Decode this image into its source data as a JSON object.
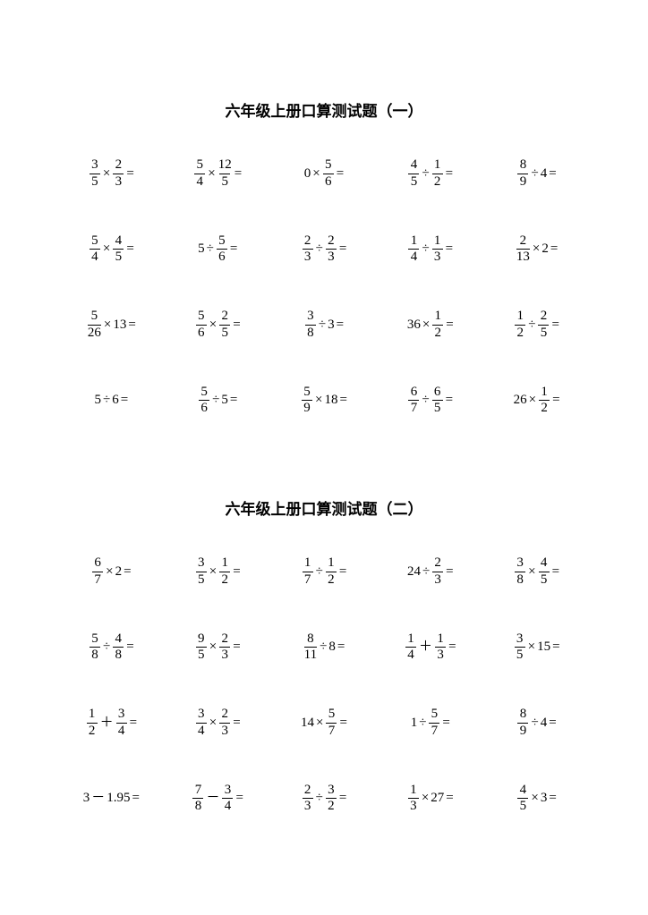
{
  "title_font_size": 17,
  "expr_font_size": 15,
  "text_color": "#000000",
  "bg_color": "#ffffff",
  "columns": 5,
  "sections": [
    {
      "title": "六年级上册口算测试题（一）",
      "rows": [
        [
          [
            {
              "t": "f",
              "n": "3",
              "d": "5"
            },
            {
              "t": "op",
              "v": "×"
            },
            {
              "t": "f",
              "n": "2",
              "d": "3"
            },
            {
              "t": "eq"
            }
          ],
          [
            {
              "t": "f",
              "n": "5",
              "d": "4"
            },
            {
              "t": "op",
              "v": "×"
            },
            {
              "t": "f",
              "n": "12",
              "d": "5"
            },
            {
              "t": "eq"
            }
          ],
          [
            {
              "t": "i",
              "v": "0"
            },
            {
              "t": "op",
              "v": "×"
            },
            {
              "t": "f",
              "n": "5",
              "d": "6"
            },
            {
              "t": "eq"
            }
          ],
          [
            {
              "t": "f",
              "n": "4",
              "d": "5"
            },
            {
              "t": "op",
              "v": "÷"
            },
            {
              "t": "f",
              "n": "1",
              "d": "2"
            },
            {
              "t": "eq"
            }
          ],
          [
            {
              "t": "f",
              "n": "8",
              "d": "9"
            },
            {
              "t": "op",
              "v": "÷"
            },
            {
              "t": "i",
              "v": "4"
            },
            {
              "t": "eq"
            }
          ]
        ],
        [
          [
            {
              "t": "f",
              "n": "5",
              "d": "4"
            },
            {
              "t": "op",
              "v": "×"
            },
            {
              "t": "f",
              "n": "4",
              "d": "5"
            },
            {
              "t": "eq"
            }
          ],
          [
            {
              "t": "i",
              "v": "5"
            },
            {
              "t": "op",
              "v": "÷"
            },
            {
              "t": "f",
              "n": "5",
              "d": "6"
            },
            {
              "t": "eq"
            }
          ],
          [
            {
              "t": "f",
              "n": "2",
              "d": "3"
            },
            {
              "t": "op",
              "v": "÷"
            },
            {
              "t": "f",
              "n": "2",
              "d": "3"
            },
            {
              "t": "eq"
            }
          ],
          [
            {
              "t": "f",
              "n": "1",
              "d": "4"
            },
            {
              "t": "op",
              "v": "÷"
            },
            {
              "t": "f",
              "n": "1",
              "d": "3"
            },
            {
              "t": "eq"
            }
          ],
          [
            {
              "t": "f",
              "n": "2",
              "d": "13"
            },
            {
              "t": "op",
              "v": "×"
            },
            {
              "t": "i",
              "v": "2"
            },
            {
              "t": "eq"
            }
          ]
        ],
        [
          [
            {
              "t": "f",
              "n": "5",
              "d": "26"
            },
            {
              "t": "op",
              "v": "×"
            },
            {
              "t": "i",
              "v": "13"
            },
            {
              "t": "eq"
            }
          ],
          [
            {
              "t": "f",
              "n": "5",
              "d": "6"
            },
            {
              "t": "op",
              "v": "×"
            },
            {
              "t": "f",
              "n": "2",
              "d": "5"
            },
            {
              "t": "eq"
            }
          ],
          [
            {
              "t": "f",
              "n": "3",
              "d": "8"
            },
            {
              "t": "op",
              "v": "÷"
            },
            {
              "t": "i",
              "v": "3"
            },
            {
              "t": "eq"
            }
          ],
          [
            {
              "t": "i",
              "v": "36"
            },
            {
              "t": "op",
              "v": "×"
            },
            {
              "t": "f",
              "n": "1",
              "d": "2"
            },
            {
              "t": "eq"
            }
          ],
          [
            {
              "t": "f",
              "n": "1",
              "d": "2"
            },
            {
              "t": "op",
              "v": "÷"
            },
            {
              "t": "f",
              "n": "2",
              "d": "5"
            },
            {
              "t": "eq"
            }
          ]
        ],
        [
          [
            {
              "t": "i",
              "v": "5"
            },
            {
              "t": "op",
              "v": "÷"
            },
            {
              "t": "i",
              "v": "6"
            },
            {
              "t": "eq"
            }
          ],
          [
            {
              "t": "f",
              "n": "5",
              "d": "6"
            },
            {
              "t": "op",
              "v": "÷"
            },
            {
              "t": "i",
              "v": "5"
            },
            {
              "t": "eq"
            }
          ],
          [
            {
              "t": "f",
              "n": "5",
              "d": "9"
            },
            {
              "t": "op",
              "v": "×"
            },
            {
              "t": "i",
              "v": "18"
            },
            {
              "t": "eq"
            }
          ],
          [
            {
              "t": "f",
              "n": "6",
              "d": "7"
            },
            {
              "t": "op",
              "v": "÷"
            },
            {
              "t": "f",
              "n": "6",
              "d": "5"
            },
            {
              "t": "eq"
            }
          ],
          [
            {
              "t": "i",
              "v": "26"
            },
            {
              "t": "op",
              "v": "×"
            },
            {
              "t": "f",
              "n": "1",
              "d": "2"
            },
            {
              "t": "eq"
            }
          ]
        ]
      ]
    },
    {
      "title": "六年级上册口算测试题（二）",
      "rows": [
        [
          [
            {
              "t": "f",
              "n": "6",
              "d": "7"
            },
            {
              "t": "op",
              "v": "×"
            },
            {
              "t": "i",
              "v": "2"
            },
            {
              "t": "eq"
            }
          ],
          [
            {
              "t": "f",
              "n": "3",
              "d": "5"
            },
            {
              "t": "op",
              "v": "×"
            },
            {
              "t": "f",
              "n": "1",
              "d": "2"
            },
            {
              "t": "eq"
            }
          ],
          [
            {
              "t": "f",
              "n": "1",
              "d": "7"
            },
            {
              "t": "op",
              "v": "÷"
            },
            {
              "t": "f",
              "n": "1",
              "d": "2"
            },
            {
              "t": "eq"
            }
          ],
          [
            {
              "t": "i",
              "v": "24"
            },
            {
              "t": "op",
              "v": "÷"
            },
            {
              "t": "f",
              "n": "2",
              "d": "3"
            },
            {
              "t": "eq"
            }
          ],
          [
            {
              "t": "f",
              "n": "3",
              "d": "8"
            },
            {
              "t": "op",
              "v": "×"
            },
            {
              "t": "f",
              "n": "4",
              "d": "5"
            },
            {
              "t": "eq"
            }
          ]
        ],
        [
          [
            {
              "t": "f",
              "n": "5",
              "d": "8"
            },
            {
              "t": "op",
              "v": "÷"
            },
            {
              "t": "f",
              "n": "4",
              "d": "8"
            },
            {
              "t": "eq"
            }
          ],
          [
            {
              "t": "f",
              "n": "9",
              "d": "5"
            },
            {
              "t": "op",
              "v": "×"
            },
            {
              "t": "f",
              "n": "2",
              "d": "3"
            },
            {
              "t": "eq"
            }
          ],
          [
            {
              "t": "f",
              "n": "8",
              "d": "11"
            },
            {
              "t": "op",
              "v": "÷"
            },
            {
              "t": "i",
              "v": "8"
            },
            {
              "t": "eq"
            }
          ],
          [
            {
              "t": "f",
              "n": "1",
              "d": "4"
            },
            {
              "t": "op",
              "v": "＋"
            },
            {
              "t": "f",
              "n": "1",
              "d": "3"
            },
            {
              "t": "eq"
            }
          ],
          [
            {
              "t": "f",
              "n": "3",
              "d": "5"
            },
            {
              "t": "op",
              "v": "×"
            },
            {
              "t": "i",
              "v": "15"
            },
            {
              "t": "eq"
            }
          ]
        ],
        [
          [
            {
              "t": "f",
              "n": "1",
              "d": "2"
            },
            {
              "t": "op",
              "v": "＋"
            },
            {
              "t": "f",
              "n": "3",
              "d": "4"
            },
            {
              "t": "eq"
            }
          ],
          [
            {
              "t": "f",
              "n": "3",
              "d": "4"
            },
            {
              "t": "op",
              "v": "×"
            },
            {
              "t": "f",
              "n": "2",
              "d": "3"
            },
            {
              "t": "eq"
            }
          ],
          [
            {
              "t": "i",
              "v": "14"
            },
            {
              "t": "op",
              "v": "×"
            },
            {
              "t": "f",
              "n": "5",
              "d": "7"
            },
            {
              "t": "eq"
            }
          ],
          [
            {
              "t": "i",
              "v": "1"
            },
            {
              "t": "op",
              "v": "÷"
            },
            {
              "t": "f",
              "n": "5",
              "d": "7"
            },
            {
              "t": "eq"
            }
          ],
          [
            {
              "t": "f",
              "n": "8",
              "d": "9"
            },
            {
              "t": "op",
              "v": "÷"
            },
            {
              "t": "i",
              "v": "4"
            },
            {
              "t": "eq"
            }
          ]
        ],
        [
          [
            {
              "t": "i",
              "v": "3"
            },
            {
              "t": "op",
              "v": "－"
            },
            {
              "t": "i",
              "v": "1.95"
            },
            {
              "t": "eq"
            }
          ],
          [
            {
              "t": "f",
              "n": "7",
              "d": "8"
            },
            {
              "t": "op",
              "v": "－"
            },
            {
              "t": "f",
              "n": "3",
              "d": "4"
            },
            {
              "t": "eq"
            }
          ],
          [
            {
              "t": "f",
              "n": "2",
              "d": "3"
            },
            {
              "t": "op",
              "v": "÷"
            },
            {
              "t": "f",
              "n": "3",
              "d": "2"
            },
            {
              "t": "eq"
            }
          ],
          [
            {
              "t": "f",
              "n": "1",
              "d": "3"
            },
            {
              "t": "op",
              "v": "×"
            },
            {
              "t": "i",
              "v": "27"
            },
            {
              "t": "eq"
            }
          ],
          [
            {
              "t": "f",
              "n": "4",
              "d": "5"
            },
            {
              "t": "op",
              "v": "×"
            },
            {
              "t": "i",
              "v": "3"
            },
            {
              "t": "eq"
            }
          ]
        ]
      ]
    }
  ]
}
